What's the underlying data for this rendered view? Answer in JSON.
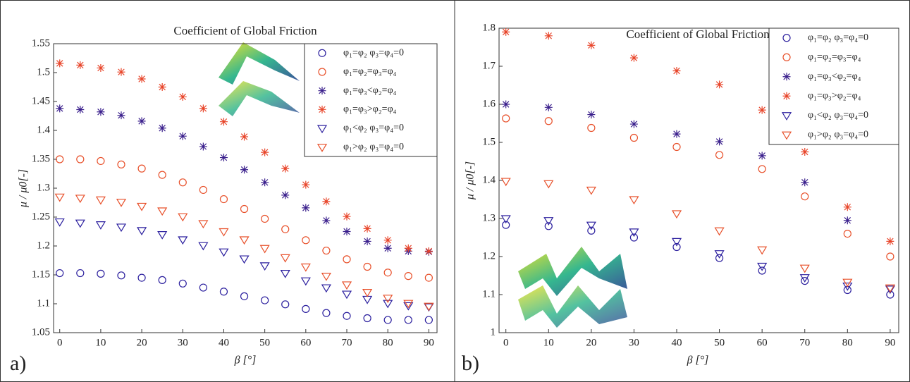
{
  "chart_data": [
    {
      "type": "scatter",
      "title": "Coefficient of Global Friction",
      "xlabel": "β [°]",
      "ylabel": "μ / μ0[-]",
      "panel_label": "a)",
      "x": [
        0,
        5,
        10,
        15,
        20,
        25,
        30,
        35,
        40,
        45,
        50,
        55,
        60,
        65,
        70,
        75,
        80,
        85,
        90
      ],
      "xlim": [
        -1.5,
        92
      ],
      "xticks": [
        0,
        10,
        20,
        30,
        40,
        50,
        60,
        70,
        80,
        90
      ],
      "ylim": [
        1.05,
        1.55
      ],
      "yticks": [
        1.05,
        1.1,
        1.15,
        1.2,
        1.25,
        1.3,
        1.35,
        1.4,
        1.45,
        1.5,
        1.55
      ],
      "legend": "upper right",
      "series": [
        {
          "name": "φ₁=φ₂ φ₃=φ₄=0",
          "color": "#2b1f9e",
          "marker": "o",
          "values": [
            1.153,
            1.153,
            1.152,
            1.149,
            1.145,
            1.141,
            1.135,
            1.128,
            1.121,
            1.113,
            1.106,
            1.099,
            1.091,
            1.084,
            1.079,
            1.075,
            1.072,
            1.072,
            1.072
          ]
        },
        {
          "name": "φ₁=φ₂=φ₃=φ₄",
          "color": "#e8502a",
          "marker": "o",
          "values": [
            1.35,
            1.35,
            1.347,
            1.341,
            1.334,
            1.323,
            1.31,
            1.297,
            1.281,
            1.264,
            1.247,
            1.229,
            1.21,
            1.192,
            1.177,
            1.164,
            1.154,
            1.148,
            1.145
          ]
        },
        {
          "name": "φ₁=φ₃<φ₂=φ₄",
          "color": "#3a1f8c",
          "marker": "*",
          "values": [
            1.438,
            1.436,
            1.432,
            1.426,
            1.416,
            1.404,
            1.39,
            1.372,
            1.353,
            1.332,
            1.31,
            1.288,
            1.266,
            1.244,
            1.225,
            1.208,
            1.196,
            1.191,
            1.19
          ]
        },
        {
          "name": "φ₁=φ₃>φ₂=φ₄",
          "color": "#e8452a",
          "marker": "*",
          "values": [
            1.516,
            1.513,
            1.508,
            1.501,
            1.489,
            1.475,
            1.458,
            1.438,
            1.415,
            1.389,
            1.362,
            1.334,
            1.306,
            1.277,
            1.251,
            1.23,
            1.21,
            1.196,
            1.191
          ]
        },
        {
          "name": "φ₁<φ₂ φ₃=φ₄=0",
          "color": "#2b1f9e",
          "marker": "v",
          "values": [
            1.242,
            1.24,
            1.237,
            1.233,
            1.227,
            1.22,
            1.211,
            1.201,
            1.19,
            1.178,
            1.166,
            1.153,
            1.14,
            1.128,
            1.117,
            1.108,
            1.101,
            1.097,
            1.095
          ]
        },
        {
          "name": "φ₁>φ₂ φ₃=φ₄=0",
          "color": "#e8502a",
          "marker": "v",
          "values": [
            1.285,
            1.283,
            1.28,
            1.276,
            1.269,
            1.261,
            1.251,
            1.239,
            1.225,
            1.211,
            1.196,
            1.18,
            1.164,
            1.148,
            1.133,
            1.12,
            1.11,
            1.101,
            1.096
          ]
        }
      ]
    },
    {
      "type": "scatter",
      "title": "Coefficient of Global Friction",
      "xlabel": "β [°]",
      "ylabel": "μ / μ0[-]",
      "panel_label": "b)",
      "x": [
        0,
        10,
        20,
        30,
        40,
        50,
        60,
        70,
        80,
        90
      ],
      "xlim": [
        -1.6,
        92
      ],
      "xticks": [
        0,
        10,
        20,
        30,
        40,
        50,
        60,
        70,
        80,
        90
      ],
      "ylim": [
        1,
        1.8
      ],
      "yticks": [
        1,
        1.1,
        1.2,
        1.3,
        1.4,
        1.5,
        1.6,
        1.7,
        1.8
      ],
      "legend": "upper right",
      "series": [
        {
          "name": "φ₁=φ₂ φ₃=φ₄=0",
          "color": "#2b1f9e",
          "marker": "o",
          "values": [
            1.283,
            1.28,
            1.268,
            1.25,
            1.225,
            1.196,
            1.163,
            1.136,
            1.112,
            1.1
          ]
        },
        {
          "name": "φ₁=φ₂=φ₃=φ₄",
          "color": "#e8502a",
          "marker": "o",
          "values": [
            1.563,
            1.556,
            1.538,
            1.512,
            1.488,
            1.467,
            1.43,
            1.358,
            1.26,
            1.2
          ]
        },
        {
          "name": "φ₁=φ₃<φ₂=φ₄",
          "color": "#3a1f8c",
          "marker": "*",
          "values": [
            1.6,
            1.592,
            1.573,
            1.548,
            1.522,
            1.502,
            1.465,
            1.395,
            1.295,
            null
          ]
        },
        {
          "name": "φ₁=φ₃>φ₂=φ₄",
          "color": "#e8452a",
          "marker": "*",
          "values": [
            1.79,
            1.78,
            1.755,
            1.722,
            1.688,
            1.652,
            1.585,
            1.475,
            1.33,
            1.24
          ]
        },
        {
          "name": "φ₁<φ₂ φ₃=φ₄=0",
          "color": "#2b1f9e",
          "marker": "v",
          "values": [
            1.3,
            1.295,
            1.283,
            1.265,
            1.24,
            1.208,
            1.175,
            1.145,
            1.123,
            1.115
          ]
        },
        {
          "name": "φ₁>φ₂ φ₃=φ₄=0",
          "color": "#e8502a",
          "marker": "v",
          "values": [
            1.398,
            1.392,
            1.375,
            1.35,
            1.313,
            1.268,
            1.218,
            1.17,
            1.133,
            1.118
          ]
        }
      ]
    }
  ]
}
